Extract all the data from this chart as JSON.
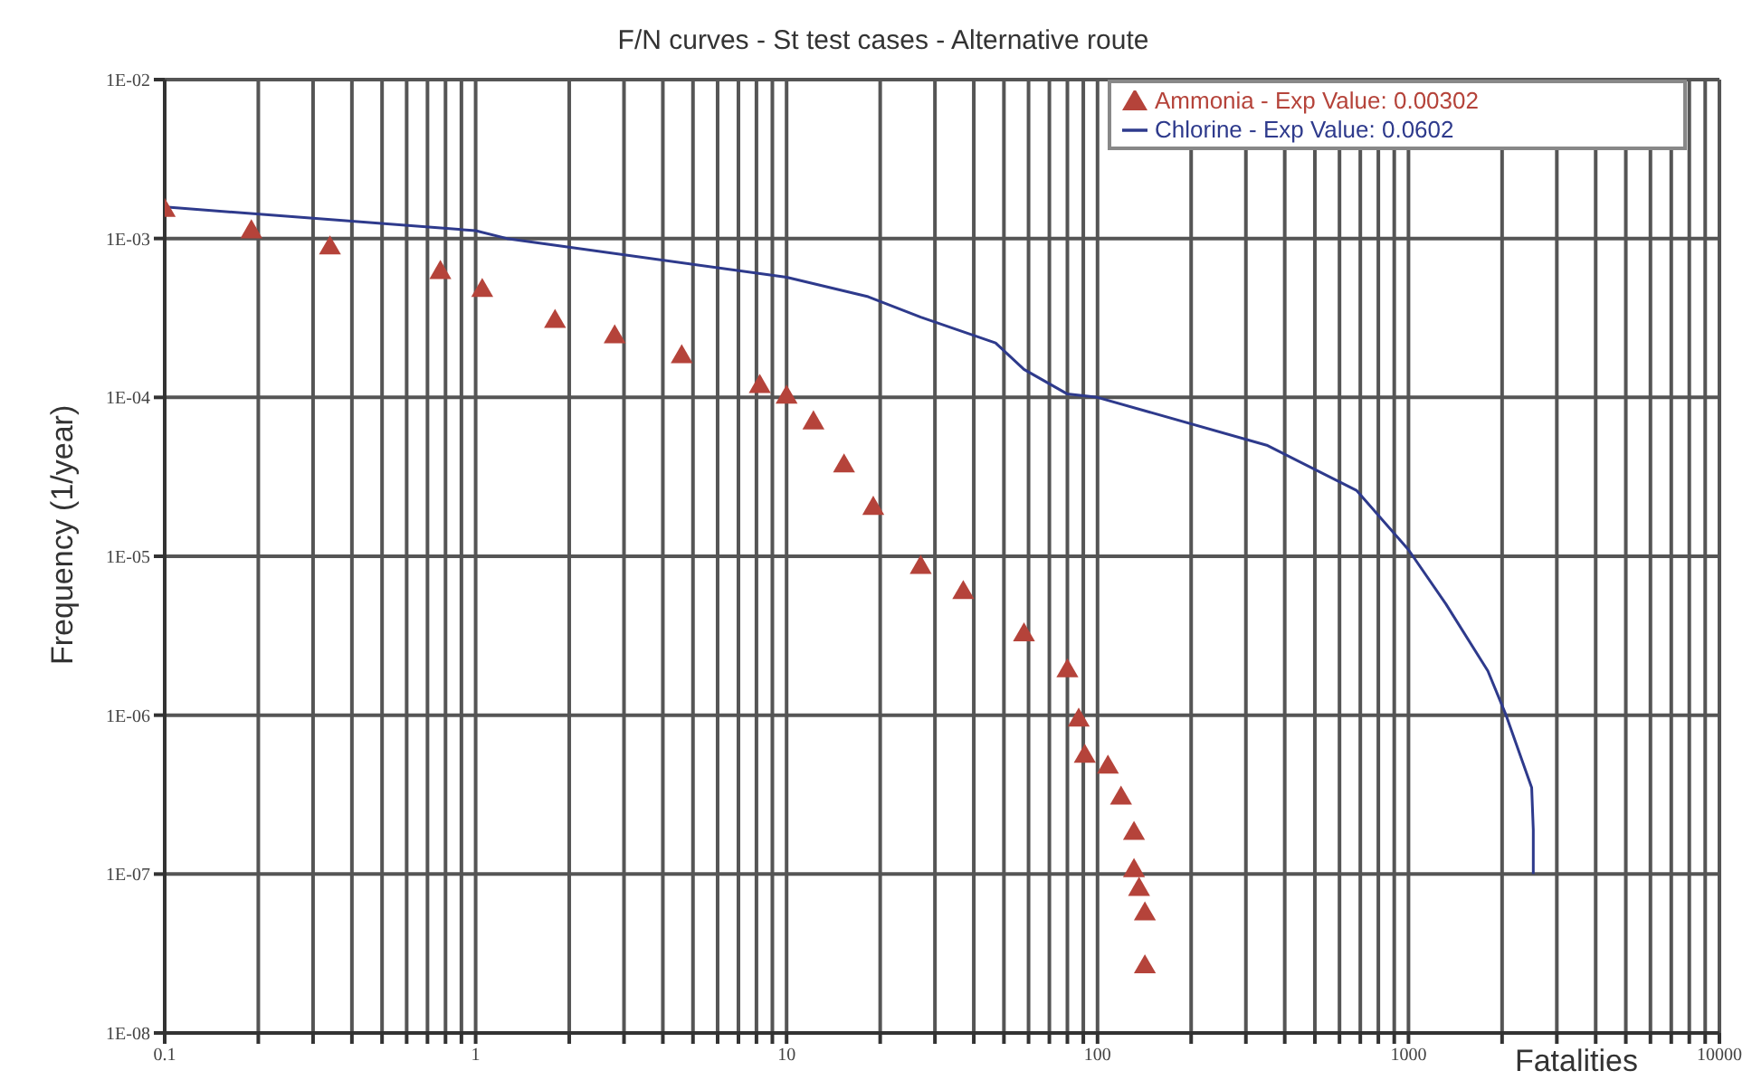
{
  "chart_data": {
    "type": "line",
    "title": "F/N curves - St test cases - Alternative route",
    "xlabel": "Fatalities",
    "ylabel": "Frequency (1/year)",
    "log": "xy",
    "grid": true,
    "legend": "top right",
    "xlim": [
      0.1,
      10000
    ],
    "xticks": [
      0.1,
      {
        "value": 0.2,
        "label": null
      },
      {
        "value": 0.3,
        "label": null
      },
      {
        "value": 0.4,
        "label": null
      },
      {
        "value": 0.5,
        "label": null
      },
      {
        "value": 0.6,
        "label": null
      },
      {
        "value": 0.7,
        "label": null
      },
      {
        "value": 0.8,
        "label": null
      },
      {
        "value": 0.9,
        "label": null
      },
      1,
      {
        "value": 2,
        "label": null
      },
      {
        "value": 3,
        "label": null
      },
      {
        "value": 4,
        "label": null
      },
      {
        "value": 5,
        "label": null
      },
      {
        "value": 6,
        "label": null
      },
      {
        "value": 7,
        "label": null
      },
      {
        "value": 8,
        "label": null
      },
      {
        "value": 9,
        "label": null
      },
      10,
      {
        "value": 20,
        "label": null
      },
      {
        "value": 30,
        "label": null
      },
      {
        "value": 40,
        "label": null
      },
      {
        "value": 50,
        "label": null
      },
      {
        "value": 60,
        "label": null
      },
      {
        "value": 70,
        "label": null
      },
      {
        "value": 80,
        "label": null
      },
      {
        "value": 90,
        "label": null
      },
      100,
      {
        "value": 200,
        "label": null
      },
      {
        "value": 300,
        "label": null
      },
      {
        "value": 400,
        "label": null
      },
      {
        "value": 500,
        "label": null
      },
      {
        "value": 600,
        "label": null
      },
      {
        "value": 700,
        "label": null
      },
      {
        "value": 800,
        "label": null
      },
      {
        "value": 900,
        "label": null
      },
      1000,
      {
        "value": 2000,
        "label": null
      },
      {
        "value": 3000,
        "label": null
      },
      {
        "value": 4000,
        "label": null
      },
      {
        "value": 5000,
        "label": null
      },
      {
        "value": 6000,
        "label": null
      },
      {
        "value": 7000,
        "label": null
      },
      {
        "value": 8000,
        "label": null
      },
      {
        "value": 9000,
        "label": null
      },
      10000
    ],
    "ylim": [
      1e-08,
      0.01
    ],
    "yticks": [
      {
        "value": 1e-08,
        "label": "1E-08"
      },
      {
        "value": 1e-07,
        "label": "1E-07"
      },
      {
        "value": 1e-06,
        "label": "1E-06"
      },
      {
        "value": 1e-05,
        "label": "1E-05"
      },
      {
        "value": 0.0001,
        "label": "1E-04"
      },
      {
        "value": 0.001,
        "label": "1E-03"
      },
      {
        "value": 0.01,
        "label": "1E-02"
      }
    ],
    "series": [
      {
        "name": "Ammonia - Exp Value: 0.00302",
        "type": "scatter",
        "marker": "triangle",
        "color": "#b5433a",
        "x": [
          0.1,
          0.19,
          0.34,
          0.77,
          1.05,
          1.8,
          2.8,
          4.6,
          8.2,
          10,
          12.2,
          15.3,
          19,
          27,
          37,
          58,
          80,
          87,
          91,
          108,
          119,
          131,
          131,
          136,
          142,
          142
        ],
        "values": [
          0.0015,
          0.0011,
          0.00087,
          0.00061,
          0.00047,
          0.0003,
          0.00024,
          0.00018,
          0.000117,
          0.0001,
          6.9e-05,
          3.7e-05,
          2e-05,
          8.5e-06,
          5.9e-06,
          3.2e-06,
          1.9e-06,
          9.3e-07,
          5.5e-07,
          4.7e-07,
          3e-07,
          1.8e-07,
          1.05e-07,
          8e-08,
          5.6e-08,
          2.6e-08
        ]
      },
      {
        "name": "Chlorine - Exp Value: 0.0602",
        "type": "line",
        "marker": "none",
        "color": "#2e3a8c",
        "x": [
          0.1,
          1,
          1.26,
          10,
          18.3,
          27,
          47,
          58,
          80,
          100,
          350,
          680,
          1000,
          1320,
          1800,
          2060,
          2490,
          2520,
          2520
        ],
        "values": [
          0.00158,
          0.00112,
          0.001,
          0.00057,
          0.00043,
          0.00032,
          0.00022,
          0.00015,
          0.000105,
          0.0001,
          5e-05,
          2.6e-05,
          1.1e-05,
          5e-06,
          1.9e-06,
          1e-06,
          3.5e-07,
          1.9e-07,
          1e-07
        ]
      }
    ]
  }
}
